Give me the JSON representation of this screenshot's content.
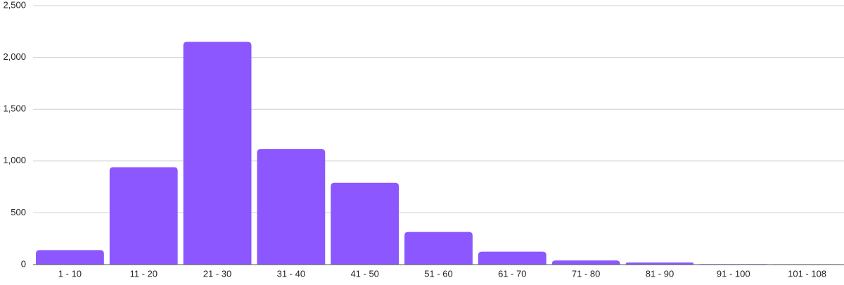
{
  "chart_data": {
    "type": "bar",
    "categories": [
      "1 - 10",
      "11 - 20",
      "21 - 30",
      "31 - 40",
      "41 - 50",
      "51 - 60",
      "61 - 70",
      "71 - 80",
      "81 - 90",
      "91 - 100",
      "101 - 108"
    ],
    "values": [
      140,
      940,
      2150,
      1115,
      790,
      315,
      125,
      40,
      20,
      5,
      4
    ],
    "color": "#8c57ff",
    "ylim": [
      0,
      2500
    ],
    "yticks": [
      0,
      500,
      {
        "value": 1000,
        "label": "1,000"
      },
      {
        "value": 1500,
        "label": "1,500"
      },
      {
        "value": 2000,
        "label": "2,000"
      },
      {
        "value": 2500,
        "label": "2,500"
      }
    ],
    "grid": true
  }
}
